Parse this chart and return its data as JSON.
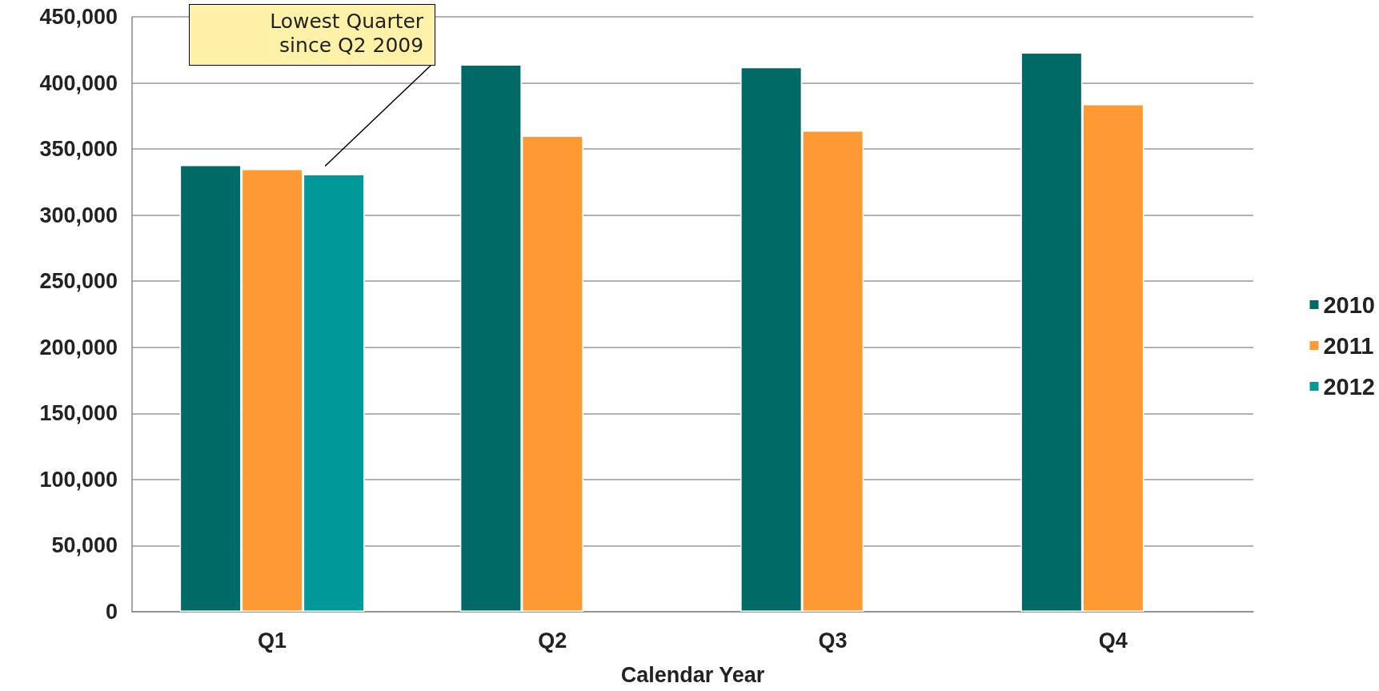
{
  "chart_data": {
    "type": "bar",
    "xlabel": "Calendar Year",
    "categories": [
      "Q1",
      "Q2",
      "Q3",
      "Q4"
    ],
    "series": [
      {
        "name": "2010",
        "color": "#006b66",
        "values": [
          338000,
          414000,
          412000,
          423000
        ]
      },
      {
        "name": "2011",
        "color": "#ff9933",
        "values": [
          335000,
          360000,
          364000,
          384000
        ]
      },
      {
        "name": "2012",
        "color": "#009999",
        "values": [
          331000,
          null,
          null,
          null
        ]
      }
    ],
    "ylim": [
      0,
      450000
    ],
    "yticks": [
      0,
      {
        "value": 50000,
        "label": "50,000"
      },
      {
        "value": 100000,
        "label": "100,000"
      },
      {
        "value": 150000,
        "label": "150,000"
      },
      {
        "value": 200000,
        "label": "200,000"
      },
      {
        "value": 250000,
        "label": "250,000"
      },
      {
        "value": 300000,
        "label": "300,000"
      },
      {
        "value": 350000,
        "label": "350,000"
      },
      {
        "value": 400000,
        "label": "400,000"
      },
      {
        "value": 450000,
        "label": "450,000"
      }
    ],
    "grid": "y",
    "legend": "right",
    "annotations": [
      "Lowest Quarter since Q2 2009"
    ]
  }
}
